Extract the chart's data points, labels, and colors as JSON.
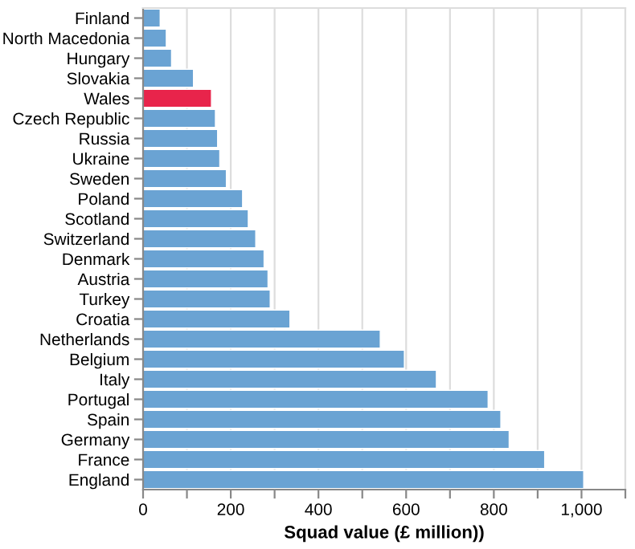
{
  "chart_data": {
    "type": "bar",
    "orientation": "horizontal",
    "xlabel": "Squad value (£ million))",
    "categories": [
      "Finland",
      "North Macedonia",
      "Hungary",
      "Slovakia",
      "Wales",
      "Czech Republic",
      "Russia",
      "Ukraine",
      "Sweden",
      "Poland",
      "Scotland",
      "Switzerland",
      "Denmark",
      "Austria",
      "Turkey",
      "Croatia",
      "Netherlands",
      "Belgium",
      "Italy",
      "Portugal",
      "Spain",
      "Germany",
      "France",
      "England"
    ],
    "values": [
      39,
      53,
      65,
      115,
      156,
      165,
      170,
      175,
      190,
      227,
      240,
      257,
      276,
      285,
      290,
      335,
      541,
      596,
      669,
      787,
      816,
      835,
      916,
      1005
    ],
    "colors": [
      "#6aa3d3",
      "#6aa3d3",
      "#6aa3d3",
      "#6aa3d3",
      "#e8244b",
      "#6aa3d3",
      "#6aa3d3",
      "#6aa3d3",
      "#6aa3d3",
      "#6aa3d3",
      "#6aa3d3",
      "#6aa3d3",
      "#6aa3d3",
      "#6aa3d3",
      "#6aa3d3",
      "#6aa3d3",
      "#6aa3d3",
      "#6aa3d3",
      "#6aa3d3",
      "#6aa3d3",
      "#6aa3d3",
      "#6aa3d3",
      "#6aa3d3",
      "#6aa3d3"
    ],
    "xlim": [
      0,
      1100
    ],
    "xticks": [
      0,
      {
        "value": 100,
        "label": null
      },
      200,
      {
        "value": 300,
        "label": null
      },
      400,
      {
        "value": 500,
        "label": null
      },
      600,
      {
        "value": 700,
        "label": null
      },
      800,
      {
        "value": 900,
        "label": null
      },
      {
        "value": 1000,
        "label": "1,000"
      },
      {
        "value": 1100,
        "label": null
      }
    ],
    "grid": "x",
    "legend": false
  }
}
